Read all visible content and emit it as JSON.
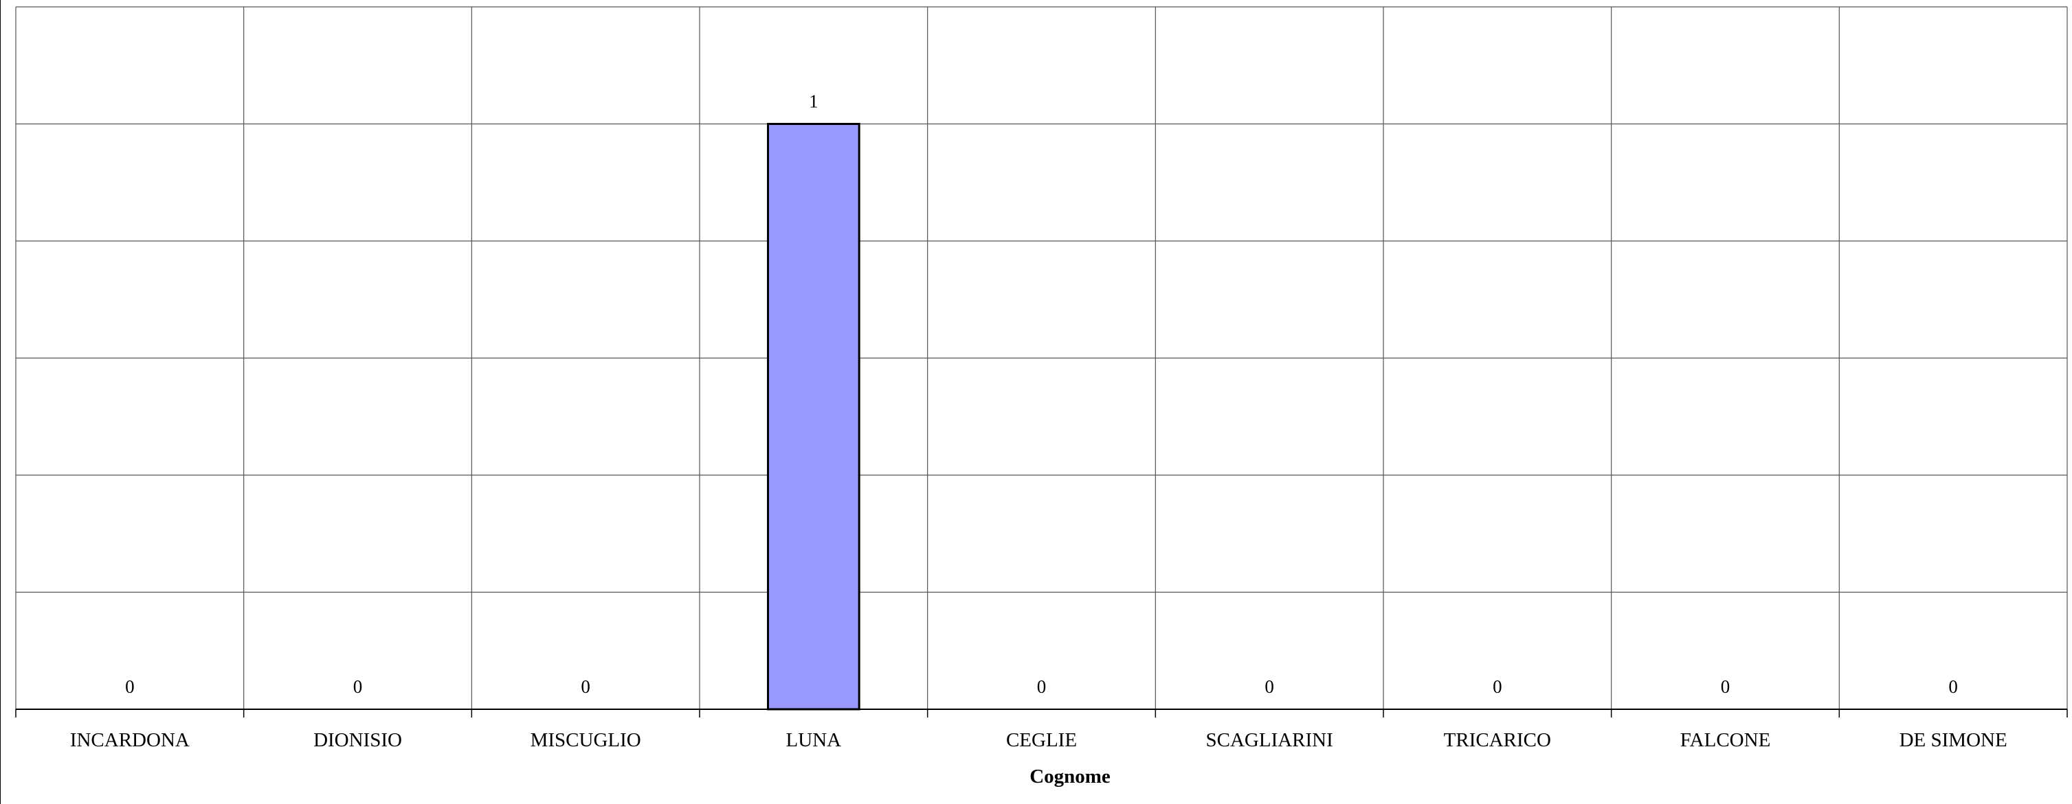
{
  "chart_data": {
    "type": "bar",
    "categories": [
      "INCARDONA",
      "DIONISIO",
      "MISCUGLIO",
      "LUNA",
      "CEGLIE",
      "SCAGLIARINI",
      "TRICARICO",
      "FALCONE",
      "DE SIMONE"
    ],
    "values": [
      0,
      0,
      0,
      1,
      0,
      0,
      0,
      0,
      0
    ],
    "data_labels": [
      "0",
      "0",
      "0",
      "1",
      "0",
      "0",
      "0",
      "0",
      "0"
    ],
    "xlabel": "Cognome",
    "ylabel": "",
    "ylim": [
      0,
      1.2
    ],
    "grid": true,
    "bar_color": "#9999ff",
    "bar_edge_color": "#000000",
    "grid_color": "#555555"
  }
}
